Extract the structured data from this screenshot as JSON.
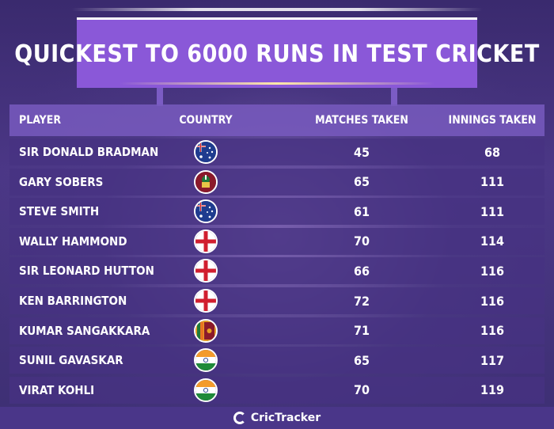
{
  "title": "QUICKEST TO 6000 RUNS IN TEST CRICKET",
  "headers": {
    "player": "PLAYER",
    "country": "COUNTRY",
    "matches": "MATCHES TAKEN",
    "innings": "INNINGS TAKEN"
  },
  "rows": [
    {
      "player": "SIR DONALD BRADMAN",
      "country_flag": "australia-flag-icon",
      "matches": "45",
      "innings": "68"
    },
    {
      "player": "GARY SOBERS",
      "country_flag": "west-indies-flag-icon",
      "matches": "65",
      "innings": "111"
    },
    {
      "player": "STEVE SMITH",
      "country_flag": "australia-flag-icon",
      "matches": "61",
      "innings": "111"
    },
    {
      "player": "WALLY HAMMOND",
      "country_flag": "england-flag-icon",
      "matches": "70",
      "innings": "114"
    },
    {
      "player": "SIR LEONARD HUTTON",
      "country_flag": "england-flag-icon",
      "matches": "66",
      "innings": "116"
    },
    {
      "player": "KEN BARRINGTON",
      "country_flag": "england-flag-icon",
      "matches": "72",
      "innings": "116"
    },
    {
      "player": "KUMAR SANGAKKARA",
      "country_flag": "sri-lanka-flag-icon",
      "matches": "71",
      "innings": "116"
    },
    {
      "player": "SUNIL GAVASKAR",
      "country_flag": "india-flag-icon",
      "matches": "65",
      "innings": "117"
    },
    {
      "player": "VIRAT KOHLI",
      "country_flag": "india-flag-icon",
      "matches": "70",
      "innings": "119"
    }
  ],
  "brand": "CricTracker",
  "colors": {
    "banner": "#8a58d8",
    "background": "#3a2a6e",
    "header_row": "#7a5abe",
    "row": "#46327f"
  }
}
